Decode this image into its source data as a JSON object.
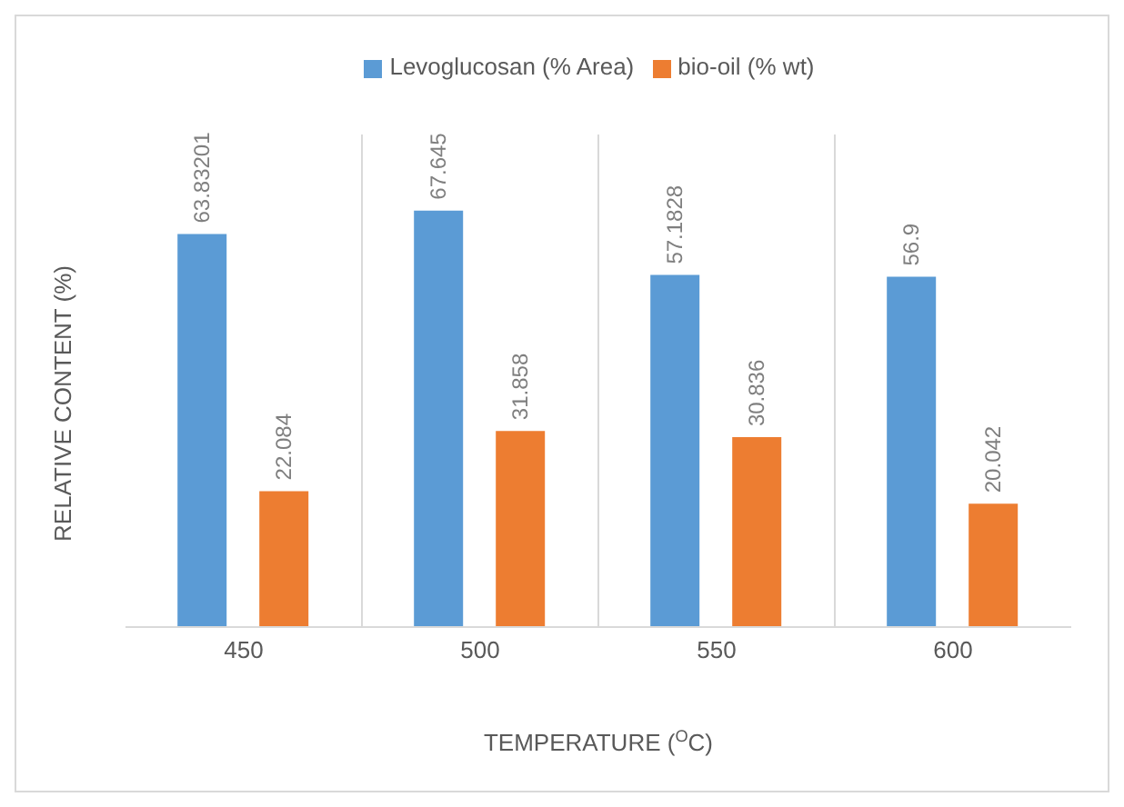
{
  "chart_data": {
    "type": "bar",
    "xlabel": "TEMPERATURE ($^{O}$C)",
    "ylabel": "RELATIVE CONTENT (%)",
    "categories": [
      "450",
      "500",
      "550",
      "600"
    ],
    "series": [
      {
        "name": "Levoglucosan (% Area)",
        "color": "#5b9bd5",
        "values": [
          63.83201,
          67.645,
          57.1828,
          56.9
        ]
      },
      {
        "name": "bio-oil (% wt)",
        "color": "#ed7d31",
        "values": [
          22.084,
          31.858,
          30.836,
          20.042
        ]
      }
    ],
    "data_labels": true,
    "legend": "top",
    "grid": "x",
    "tick_labels": "x"
  }
}
